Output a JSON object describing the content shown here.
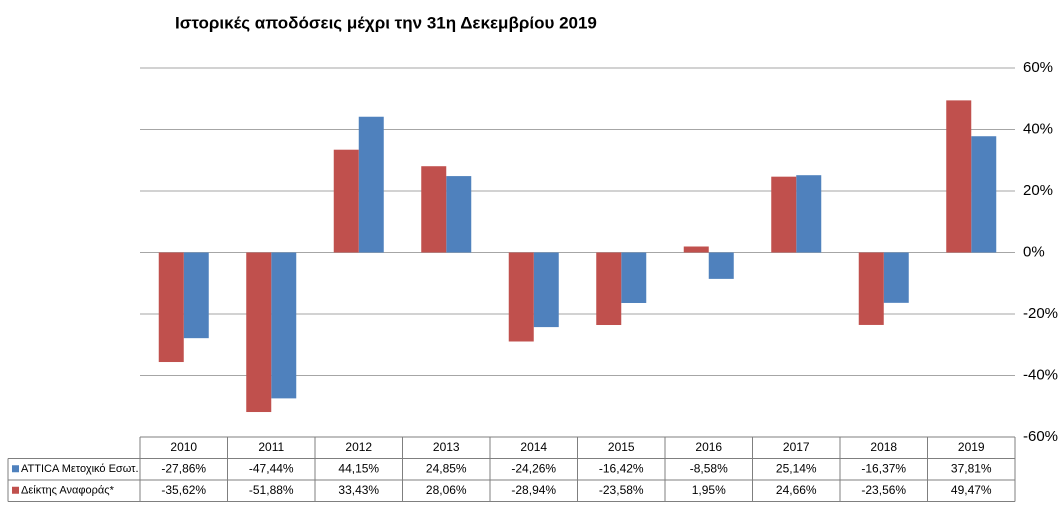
{
  "chart_data": {
    "type": "bar",
    "title": "Ιστορικές αποδόσεις μέχρι την 31η Δεκεμβρίου 2019",
    "categories": [
      "2010",
      "2011",
      "2012",
      "2013",
      "2014",
      "2015",
      "2016",
      "2017",
      "2018",
      "2019"
    ],
    "series": [
      {
        "name": "ATTICA Μετοχικό Εσωτ.",
        "color": "#4f81bd",
        "values": [
          -27.86,
          -47.44,
          44.15,
          24.85,
          -24.26,
          -16.42,
          -8.58,
          25.14,
          -16.37,
          37.81
        ],
        "value_labels": [
          "-27,86%",
          "-47,44%",
          "44,15%",
          "24,85%",
          "-24,26%",
          "-16,42%",
          "-8,58%",
          "25,14%",
          "-16,37%",
          "37,81%"
        ]
      },
      {
        "name": "Δείκτης Αναφοράς*",
        "color": "#c0504d",
        "values": [
          -35.62,
          -51.88,
          33.43,
          28.06,
          -28.94,
          -23.58,
          1.95,
          24.66,
          -23.56,
          49.47
        ],
        "value_labels": [
          "-35,62%",
          "-51,88%",
          "33,43%",
          "28,06%",
          "-28,94%",
          "-23,58%",
          "1,95%",
          "24,66%",
          "-23,56%",
          "49,47%"
        ]
      }
    ],
    "ylim": [
      -60,
      60
    ],
    "yticks": [
      {
        "value": -60,
        "label": "-60%"
      },
      {
        "value": -40,
        "label": "-40%"
      },
      {
        "value": -20,
        "label": "-20%"
      },
      {
        "value": 0,
        "label": "0%"
      },
      {
        "value": 20,
        "label": "20%"
      },
      {
        "value": 40,
        "label": "40%"
      },
      {
        "value": 60,
        "label": "60%"
      }
    ],
    "grid": true
  }
}
